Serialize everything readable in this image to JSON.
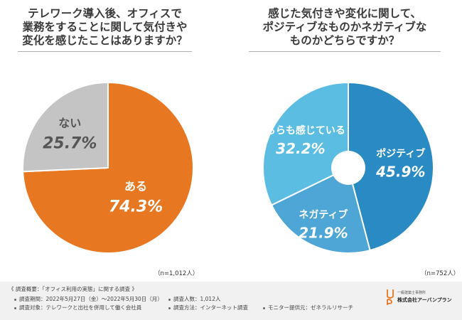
{
  "chart_data": [
    {
      "type": "pie",
      "title": "テレワーク導入後、オフィスで業務をすることに関して気付きや変化を感じたことはありますか？",
      "title_lines": [
        "テレワーク導入後、オフィスで",
        "業務をすることに関して気付きや",
        "変化を感じたことはありますか？"
      ],
      "categories": [
        "ある",
        "ない"
      ],
      "values": [
        74.3,
        25.7
      ],
      "value_labels": [
        "74.3%",
        "25.7%"
      ],
      "colors": [
        "#e87722",
        "#c4c4c4"
      ],
      "label_colors": [
        "#ffffff",
        "#555555"
      ],
      "donut": false,
      "sample_size": "（n=1,012人）"
    },
    {
      "type": "pie",
      "title": "感じた気付きや変化に関して、ポジティブなものかネガティブなものかどちらですか？",
      "title_lines": [
        "感じた気付きや変化に関して、",
        "ポジティブなものかネガティブな",
        "ものかどちらですか？"
      ],
      "categories": [
        "ポジティブ",
        "ネガティブ",
        "どちらも感じている"
      ],
      "values": [
        45.9,
        21.9,
        32.2
      ],
      "value_labels": [
        "45.9%",
        "21.9%",
        "32.2%"
      ],
      "colors": [
        "#2a8bc4",
        "#4ea6d6",
        "#5cbde3"
      ],
      "label_colors": [
        "#ffffff",
        "#ffffff",
        "#ffffff"
      ],
      "donut": true,
      "sample_size": "（n=752人）"
    }
  ],
  "footer": {
    "heading": "《 調査概要：「オフィス利用の実態」に関する調査 》",
    "period": "調査期間：2022年5月27日（金）〜2022年5月30日（月）",
    "target": "調査対象：テレワークと出社を併用して働く会社員",
    "count": "調査人数：1,012人",
    "method": "調査方法：インターネット調査",
    "monitor": "モニター提供元：ゼネラルリサーチ"
  },
  "logo": {
    "sub": "一級建築士事務所",
    "name": "株式会社アーバンプラン",
    "color": "#e87722"
  }
}
